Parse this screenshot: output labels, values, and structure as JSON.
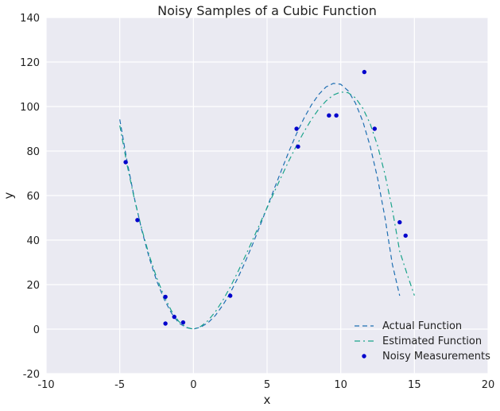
{
  "chart_data": {
    "type": "scatter",
    "title": "Noisy Samples of a Cubic Function",
    "xlabel": "x",
    "ylabel": "y",
    "xlim": [
      -10,
      20
    ],
    "ylim": [
      -20,
      140
    ],
    "x_ticks": [
      -10,
      -5,
      0,
      5,
      10,
      15,
      20
    ],
    "y_ticks": [
      -20,
      0,
      20,
      40,
      60,
      80,
      100,
      120,
      140
    ],
    "grid": true,
    "legend_position": "bottom-right",
    "colors": {
      "plot_background": "#eaeaf2",
      "grid": "#ffffff",
      "actual_function": "#1f6fb2",
      "estimated_function": "#1aa38a",
      "noisy_measurements": "#0000cc"
    },
    "series": [
      {
        "name": "Actual Function",
        "kind": "line",
        "style": "dashed",
        "x": [
          -5,
          -4.5,
          -4,
          -3.5,
          -3,
          -2.5,
          -2,
          -1.5,
          -1,
          -0.5,
          0,
          0.5,
          1,
          1.5,
          2,
          2.5,
          3,
          3.5,
          4,
          4.5,
          5,
          5.5,
          6,
          6.5,
          7,
          7.5,
          8,
          8.5,
          9,
          9.5,
          10,
          10.5,
          11,
          11.5,
          12,
          12.5,
          13,
          13.5,
          14,
          14.5,
          15
        ],
        "y": [
          94.2,
          75.2,
          58.6,
          44.3,
          32,
          21.8,
          13.6,
          7.3,
          2.8,
          0.7,
          0,
          0.9,
          2.9,
          6.2,
          10.8,
          16.3,
          22.8,
          30,
          37.8,
          46.1,
          54.7,
          63.3,
          71.8,
          80.1,
          87.8,
          94.7,
          100.6,
          105.4,
          108.8,
          110.4,
          110,
          107.1,
          101.5,
          93.3,
          82.1,
          67.8,
          50.2,
          29.2,
          15,
          null,
          null
        ]
      },
      {
        "name": "Estimated Function",
        "kind": "line",
        "style": "dashdot",
        "x": [
          -5,
          -4.5,
          -4,
          -3.5,
          -3,
          -2.5,
          -2,
          -1.5,
          -1,
          -0.5,
          0,
          0.5,
          1,
          1.5,
          2,
          2.5,
          3,
          3.5,
          4,
          4.5,
          5,
          5.5,
          6,
          6.5,
          7,
          7.5,
          8,
          8.5,
          9,
          9.5,
          10,
          10.5,
          11,
          11.5,
          12,
          12.5,
          13,
          13.5,
          14,
          14.5,
          15
        ],
        "y": [
          91.5,
          73.7,
          58.2,
          44.8,
          33.1,
          23.2,
          14.9,
          8.3,
          3.5,
          0.8,
          0,
          1.2,
          3.9,
          7.9,
          13,
          18.9,
          25.5,
          32.5,
          39.8,
          47.2,
          54.5,
          61.8,
          68.9,
          75.9,
          82.5,
          88.6,
          94.1,
          98.8,
          102.5,
          105.2,
          106.5,
          106.2,
          103.9,
          99.2,
          92.2,
          82.4,
          69.6,
          53.8,
          35,
          24.8,
          15.1
        ]
      },
      {
        "name": "Noisy Measurements",
        "kind": "scatter",
        "x": [
          -4.6,
          -3.8,
          -1.9,
          -1.9,
          -1.3,
          -0.7,
          2.5,
          7,
          7.1,
          9.2,
          9.7,
          11.6,
          12.3,
          14,
          14.4
        ],
        "y": [
          75,
          49,
          14.5,
          2.5,
          5.5,
          3,
          15,
          90,
          82,
          96,
          96,
          115.5,
          90,
          48,
          42
        ]
      }
    ]
  }
}
